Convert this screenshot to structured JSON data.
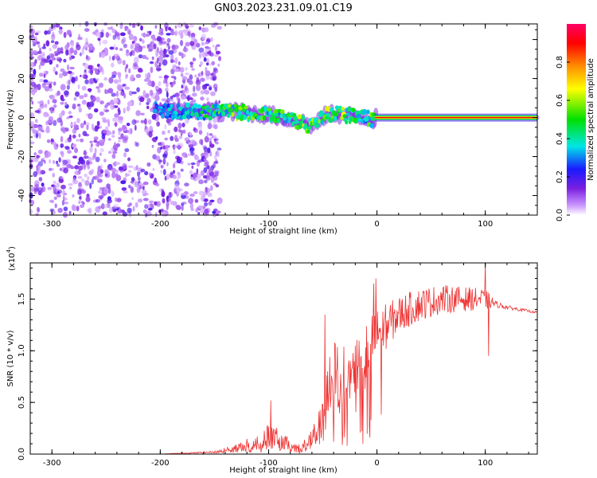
{
  "title": "GN03.2023.231.09.01.C19",
  "chart_data": [
    {
      "type": "heatmap",
      "xlabel": "Height of straight line (km)",
      "ylabel": "Frequency (Hz)",
      "xlim": [
        -320,
        148
      ],
      "ylim": [
        -50,
        48
      ],
      "x_ticks": [
        -300,
        -200,
        -100,
        0,
        100
      ],
      "x_tick_labels": [
        "-300",
        "-200",
        "-100",
        "0",
        "100"
      ],
      "y_ticks": [
        40,
        20,
        0,
        -20,
        -40
      ],
      "y_tick_labels": [
        "40",
        "20",
        "0",
        "-20",
        "-40"
      ],
      "colorbar": {
        "label": "Normalized spectral amplitude",
        "range": [
          0,
          1
        ],
        "ticks": [
          0.0,
          0.2,
          0.4,
          0.6,
          0.8
        ],
        "tick_labels": [
          "0.0",
          "0.2",
          "0.4",
          "0.6",
          "0.8"
        ],
        "colormap": [
          "#ffffff",
          "#cc99ff",
          "#7a1fe0",
          "#1a1aff",
          "#00e6e6",
          "#00e000",
          "#ffff00",
          "#ff8c00",
          "#ff0000",
          "#ff0066"
        ]
      },
      "noise_region_x": [
        -320,
        -145
      ],
      "signal_track": {
        "x": [
          -205,
          -170,
          -150,
          -130,
          -110,
          -95,
          -80,
          -70,
          -62,
          -55,
          -50,
          -45,
          -38,
          -30,
          -20,
          -10,
          -3,
          0,
          50,
          100,
          148
        ],
        "freq_hz": [
          4,
          3,
          3,
          3,
          2,
          1,
          -1,
          -2,
          -4,
          -3,
          0,
          2,
          2,
          1,
          1,
          0,
          -1,
          0,
          0,
          0,
          0
        ],
        "amplitude": [
          0.3,
          0.45,
          0.5,
          0.55,
          0.5,
          0.5,
          0.55,
          0.6,
          0.65,
          0.5,
          0.55,
          0.6,
          0.55,
          0.6,
          0.5,
          0.5,
          0.6,
          0.85,
          0.9,
          0.9,
          0.85
        ]
      }
    },
    {
      "type": "line",
      "xlabel": "Height of straight line (km)",
      "ylabel": "SNR (10 * v/v)",
      "y_scale_label": "(x10",
      "y_scale_exp": "4",
      "y_scale_suffix": ")",
      "xlim": [
        -320,
        148
      ],
      "ylim": [
        0,
        1.85
      ],
      "x_ticks": [
        -300,
        -200,
        -100,
        0,
        100
      ],
      "x_tick_labels": [
        "-300",
        "-200",
        "-100",
        "0",
        "100"
      ],
      "y_ticks": [
        0.0,
        0.5,
        1.0,
        1.5
      ],
      "y_tick_labels": [
        "0.0",
        "0.5",
        "1.0",
        "1.5"
      ],
      "color": "#ee3333",
      "series": [
        {
          "x": [
            -320,
            -200,
            -150,
            -130,
            -110,
            -100,
            -90,
            -80,
            -70,
            -60,
            -50,
            -45,
            -40,
            -30,
            -20,
            -10,
            0,
            20,
            40,
            60,
            80,
            100,
            110,
            120,
            148
          ],
          "y": [
            0.0,
            0.0,
            0.02,
            0.06,
            0.12,
            0.18,
            0.14,
            0.08,
            0.05,
            0.15,
            0.3,
            0.55,
            0.8,
            0.75,
            0.9,
            1.0,
            1.15,
            1.35,
            1.45,
            1.5,
            1.5,
            1.5,
            1.45,
            1.42,
            1.37
          ],
          "noise": [
            0.0,
            0.0,
            0.01,
            0.04,
            0.08,
            0.12,
            0.1,
            0.06,
            0.04,
            0.12,
            0.2,
            0.35,
            0.4,
            0.3,
            0.35,
            0.3,
            0.25,
            0.18,
            0.16,
            0.14,
            0.12,
            0.1,
            0.03,
            0.02,
            0.01
          ]
        }
      ],
      "spikes": [
        {
          "x": -98,
          "y": 0.52
        },
        {
          "x": -48,
          "y": 1.35
        },
        {
          "x": -3,
          "y": 1.65
        },
        {
          "x": -1,
          "y": 1.7
        },
        {
          "x": 100,
          "y": 1.85
        },
        {
          "x": 103,
          "y": 0.95
        }
      ]
    }
  ]
}
